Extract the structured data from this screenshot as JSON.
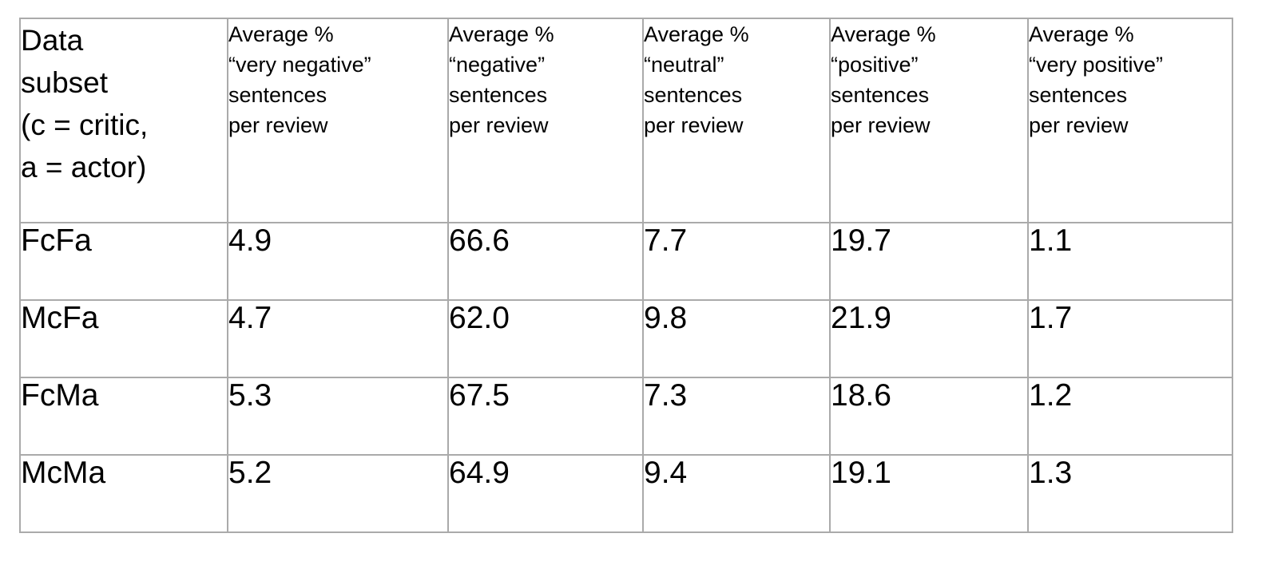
{
  "table": {
    "header": {
      "subset": [
        "Data",
        "subset",
        "(c = critic,",
        "a = actor)"
      ],
      "columns": [
        [
          "Average %",
          "“very negative”",
          "sentences",
          "per review"
        ],
        [
          "Average %",
          "“negative”",
          "sentences",
          "per review"
        ],
        [
          "Average %",
          "“neutral”",
          "sentences",
          "per review"
        ],
        [
          "Average %",
          "“positive”",
          "sentences",
          "per review"
        ],
        [
          "Average %",
          "“very positive”",
          "sentences",
          "per review"
        ]
      ]
    },
    "rows": [
      {
        "subset": "FcFa",
        "values": [
          "4.9",
          "66.6",
          "7.7",
          "19.7",
          "1.1"
        ]
      },
      {
        "subset": "McFa",
        "values": [
          "4.7",
          "62.0",
          "9.8",
          "21.9",
          "1.7"
        ]
      },
      {
        "subset": "FcMa",
        "values": [
          "5.3",
          "67.5",
          "7.3",
          "18.6",
          "1.2"
        ]
      },
      {
        "subset": "McMa",
        "values": [
          "5.2",
          "64.9",
          "9.4",
          "19.1",
          "1.3"
        ]
      }
    ]
  },
  "colors": {
    "border": "#aaaaaa",
    "text": "#000000",
    "background": "#ffffff"
  }
}
